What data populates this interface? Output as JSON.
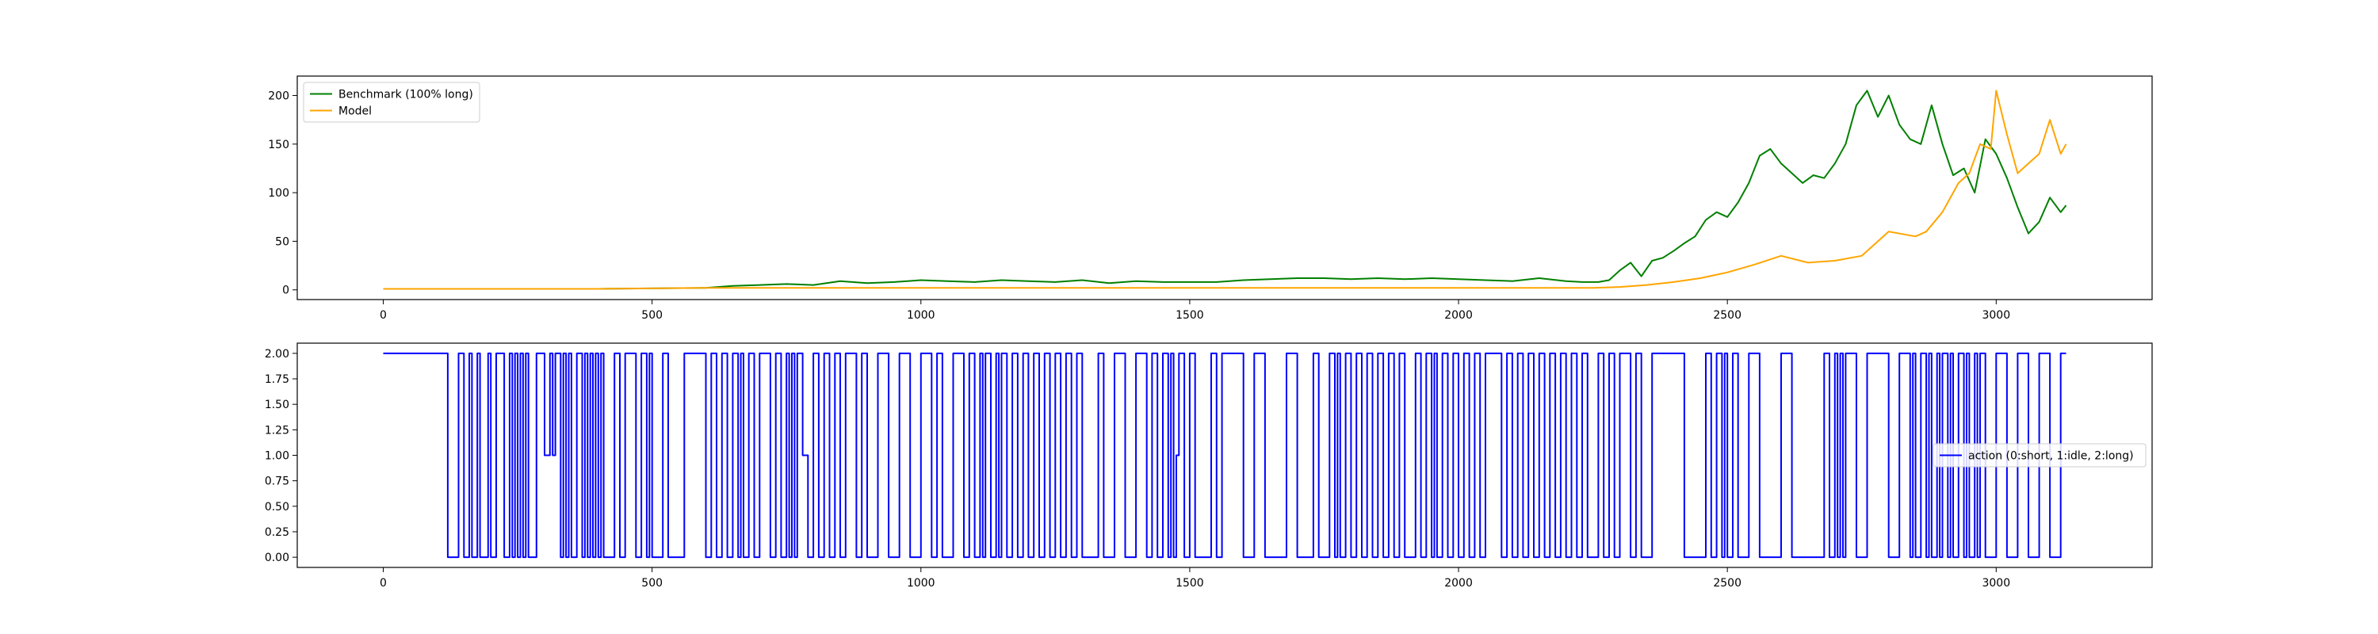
{
  "chart_data": [
    {
      "type": "line",
      "title": "",
      "xlabel": "",
      "ylabel": "",
      "xlim": [
        -160,
        3290
      ],
      "ylim": [
        -10,
        220
      ],
      "xticks": [
        0,
        500,
        1000,
        1500,
        2000,
        2500,
        3000
      ],
      "xtick_labels": [
        "0",
        "500",
        "1000",
        "1500",
        "2000",
        "2500",
        "3000"
      ],
      "yticks": [
        0,
        50,
        100,
        150,
        200
      ],
      "ytick_labels": [
        "0",
        "50",
        "100",
        "150",
        "200"
      ],
      "grid": false,
      "legend_position": "upper left",
      "series": [
        {
          "name": "Benchmark (100% long)",
          "color": "#008000",
          "x": [
            0,
            200,
            400,
            600,
            650,
            700,
            750,
            800,
            850,
            900,
            950,
            1000,
            1050,
            1100,
            1150,
            1200,
            1250,
            1300,
            1350,
            1400,
            1450,
            1500,
            1550,
            1600,
            1650,
            1700,
            1750,
            1800,
            1850,
            1900,
            1950,
            2000,
            2050,
            2100,
            2150,
            2200,
            2230,
            2260,
            2280,
            2300,
            2320,
            2340,
            2360,
            2380,
            2400,
            2420,
            2440,
            2460,
            2480,
            2500,
            2520,
            2540,
            2560,
            2580,
            2600,
            2620,
            2640,
            2660,
            2680,
            2700,
            2720,
            2740,
            2760,
            2780,
            2800,
            2820,
            2840,
            2860,
            2880,
            2900,
            2920,
            2940,
            2960,
            2980,
            3000,
            3020,
            3040,
            3060,
            3080,
            3100,
            3120,
            3130
          ],
          "values": [
            1,
            1,
            1,
            2,
            4,
            5,
            6,
            5,
            9,
            7,
            8,
            10,
            9,
            8,
            10,
            9,
            8,
            10,
            7,
            9,
            8,
            8,
            8,
            10,
            11,
            12,
            12,
            11,
            12,
            11,
            12,
            11,
            10,
            9,
            12,
            9,
            8,
            8,
            10,
            20,
            28,
            14,
            30,
            33,
            40,
            48,
            55,
            72,
            80,
            75,
            90,
            110,
            138,
            145,
            130,
            120,
            110,
            118,
            115,
            130,
            150,
            190,
            205,
            178,
            200,
            170,
            155,
            150,
            190,
            150,
            118,
            125,
            100,
            155,
            140,
            115,
            85,
            58,
            70,
            95,
            80,
            87
          ]
        },
        {
          "name": "Model",
          "color": "#ffa500",
          "x": [
            0,
            200,
            400,
            600,
            800,
            1000,
            1200,
            1400,
            1600,
            1800,
            2000,
            2100,
            2200,
            2250,
            2300,
            2350,
            2400,
            2450,
            2500,
            2550,
            2600,
            2650,
            2700,
            2750,
            2800,
            2850,
            2870,
            2900,
            2930,
            2950,
            2970,
            2990,
            3000,
            3020,
            3040,
            3060,
            3080,
            3100,
            3120,
            3130
          ],
          "values": [
            1,
            1,
            1,
            2,
            2,
            2,
            2,
            2,
            2,
            2,
            2,
            2,
            2,
            2,
            3,
            5,
            8,
            12,
            18,
            26,
            35,
            28,
            30,
            35,
            60,
            55,
            60,
            80,
            110,
            120,
            150,
            145,
            205,
            160,
            120,
            130,
            140,
            175,
            140,
            150
          ]
        }
      ]
    },
    {
      "type": "line",
      "title": "",
      "xlabel": "",
      "ylabel": "",
      "xlim": [
        -160,
        3290
      ],
      "ylim": [
        -0.1,
        2.1
      ],
      "xticks": [
        0,
        500,
        1000,
        1500,
        2000,
        2500,
        3000
      ],
      "xtick_labels": [
        "0",
        "500",
        "1000",
        "1500",
        "2000",
        "2500",
        "3000"
      ],
      "yticks": [
        0,
        0.25,
        0.5,
        0.75,
        1,
        1.25,
        1.5,
        1.75,
        2
      ],
      "ytick_labels": [
        "0.00",
        "0.25",
        "0.50",
        "0.75",
        "1.00",
        "1.25",
        "1.50",
        "1.75",
        "2.00"
      ],
      "grid": false,
      "legend_position": "center right",
      "series": [
        {
          "name": "action (0:short, 1:idle, 2:long)",
          "color": "#0000ff",
          "step": true,
          "x": [
            0,
            120,
            140,
            150,
            160,
            165,
            175,
            180,
            195,
            200,
            210,
            225,
            235,
            240,
            245,
            250,
            255,
            260,
            265,
            270,
            285,
            300,
            310,
            315,
            320,
            330,
            335,
            340,
            345,
            350,
            360,
            370,
            375,
            380,
            385,
            390,
            395,
            400,
            405,
            410,
            430,
            440,
            450,
            470,
            480,
            490,
            495,
            500,
            520,
            530,
            560,
            600,
            610,
            620,
            630,
            640,
            650,
            660,
            665,
            670,
            680,
            690,
            700,
            720,
            730,
            740,
            750,
            755,
            760,
            765,
            770,
            780,
            790,
            800,
            810,
            820,
            830,
            840,
            850,
            860,
            880,
            890,
            900,
            920,
            940,
            960,
            980,
            1000,
            1020,
            1030,
            1040,
            1060,
            1080,
            1090,
            1100,
            1110,
            1115,
            1120,
            1130,
            1140,
            1145,
            1150,
            1160,
            1170,
            1180,
            1190,
            1200,
            1210,
            1220,
            1230,
            1240,
            1250,
            1260,
            1270,
            1280,
            1290,
            1300,
            1330,
            1340,
            1360,
            1380,
            1400,
            1420,
            1430,
            1440,
            1450,
            1460,
            1465,
            1470,
            1475,
            1480,
            1490,
            1500,
            1510,
            1540,
            1550,
            1560,
            1600,
            1620,
            1640,
            1680,
            1700,
            1730,
            1740,
            1760,
            1770,
            1775,
            1780,
            1790,
            1800,
            1810,
            1820,
            1830,
            1840,
            1850,
            1860,
            1870,
            1880,
            1890,
            1900,
            1920,
            1930,
            1940,
            1950,
            1955,
            1960,
            1970,
            1980,
            1990,
            2000,
            2010,
            2020,
            2030,
            2040,
            2050,
            2080,
            2090,
            2100,
            2110,
            2120,
            2130,
            2140,
            2150,
            2160,
            2170,
            2180,
            2190,
            2200,
            2210,
            2220,
            2230,
            2240,
            2260,
            2270,
            2280,
            2290,
            2300,
            2320,
            2330,
            2340,
            2360,
            2420,
            2460,
            2470,
            2480,
            2490,
            2495,
            2500,
            2510,
            2520,
            2540,
            2560,
            2600,
            2620,
            2680,
            2690,
            2700,
            2705,
            2710,
            2715,
            2720,
            2740,
            2760,
            2800,
            2820,
            2840,
            2845,
            2850,
            2860,
            2870,
            2875,
            2880,
            2890,
            2895,
            2900,
            2910,
            2915,
            2920,
            2930,
            2940,
            2945,
            2950,
            2960,
            2965,
            2970,
            2980,
            3000,
            3020,
            3040,
            3060,
            3080,
            3100,
            3120,
            3130
          ],
          "values": [
            2,
            0,
            2,
            0,
            2,
            0,
            2,
            0,
            2,
            0,
            2,
            0,
            2,
            0,
            2,
            0,
            2,
            0,
            2,
            0,
            2,
            1,
            2,
            1,
            2,
            0,
            2,
            0,
            2,
            0,
            2,
            0,
            2,
            0,
            2,
            0,
            2,
            0,
            2,
            0,
            2,
            0,
            2,
            0,
            2,
            0,
            2,
            0,
            2,
            0,
            2,
            0,
            2,
            0,
            2,
            0,
            2,
            0,
            2,
            0,
            2,
            0,
            2,
            0,
            2,
            0,
            2,
            0,
            2,
            0,
            2,
            1,
            0,
            2,
            0,
            2,
            0,
            2,
            0,
            2,
            0,
            2,
            0,
            2,
            0,
            2,
            0,
            2,
            0,
            2,
            0,
            2,
            0,
            2,
            0,
            2,
            0,
            2,
            0,
            2,
            0,
            2,
            0,
            2,
            0,
            2,
            0,
            2,
            0,
            2,
            0,
            2,
            0,
            2,
            0,
            2,
            0,
            2,
            0,
            2,
            0,
            2,
            0,
            2,
            0,
            2,
            0,
            2,
            0,
            1,
            2,
            0,
            2,
            0,
            2,
            0,
            2,
            0,
            2,
            0,
            2,
            0,
            2,
            0,
            2,
            0,
            2,
            0,
            2,
            0,
            2,
            0,
            2,
            0,
            2,
            0,
            2,
            0,
            2,
            0,
            2,
            0,
            2,
            0,
            2,
            0,
            2,
            0,
            2,
            0,
            2,
            0,
            2,
            0,
            2,
            0,
            2,
            0,
            2,
            0,
            2,
            0,
            2,
            0,
            2,
            0,
            2,
            0,
            2,
            0,
            2,
            0,
            2,
            0,
            2,
            0,
            2,
            0,
            2,
            0,
            2,
            0,
            2,
            0,
            2,
            0,
            2,
            0,
            2,
            0,
            2,
            0,
            2,
            0,
            2,
            0,
            2,
            0,
            2,
            0,
            2,
            0,
            2,
            0,
            2,
            0,
            2,
            0,
            2,
            0,
            2,
            0,
            2,
            0,
            2,
            0,
            2,
            0,
            2,
            0,
            2,
            0,
            2,
            0,
            2,
            0,
            2,
            0,
            2,
            0,
            2,
            0,
            2,
            2
          ]
        }
      ]
    }
  ]
}
